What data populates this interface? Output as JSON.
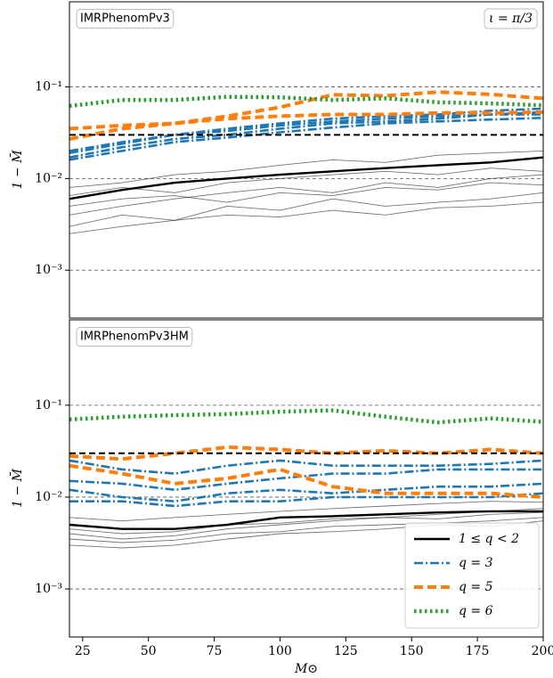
{
  "chart_data": [
    {
      "type": "line",
      "annotation": "IMRPhenomPv3",
      "annotation_right": "ι = π/3",
      "ylabel": "1 − M̄",
      "log_y": true,
      "ylim": [
        0.0003,
        0.85
      ],
      "yticks": [
        {
          "value": 0.001,
          "label": "10⁻³"
        },
        {
          "value": 0.01,
          "label": "10⁻²"
        },
        {
          "value": 0.1,
          "label": "10⁻¹"
        }
      ],
      "grid": true,
      "xlim": [
        20,
        200
      ],
      "hline": 0.03,
      "x": [
        20,
        40,
        60,
        80,
        100,
        120,
        140,
        160,
        180,
        200
      ],
      "series": [
        {
          "color": "#000000",
          "style": "thin",
          "lines": [
            [
              0.003,
              0.004,
              0.0035,
              0.005,
              0.0045,
              0.006,
              0.005,
              0.0055,
              0.006,
              0.007
            ],
            [
              0.004,
              0.005,
              0.006,
              0.007,
              0.008,
              0.007,
              0.009,
              0.008,
              0.01,
              0.011
            ],
            [
              0.008,
              0.009,
              0.011,
              0.012,
              0.014,
              0.016,
              0.015,
              0.018,
              0.019,
              0.02
            ],
            [
              0.0065,
              0.008,
              0.007,
              0.009,
              0.01,
              0.011,
              0.012,
              0.011,
              0.013,
              0.012
            ],
            [
              0.005,
              0.006,
              0.0065,
              0.0055,
              0.007,
              0.0065,
              0.008,
              0.0075,
              0.009,
              0.0085
            ],
            [
              0.0025,
              0.003,
              0.0035,
              0.004,
              0.0038,
              0.0045,
              0.004,
              0.0048,
              0.005,
              0.0055
            ]
          ]
        },
        {
          "color": "#000000",
          "style": "solid",
          "lines": [
            [
              0.006,
              0.0075,
              0.009,
              0.01,
              0.011,
              0.012,
              0.013,
              0.014,
              0.015,
              0.017
            ]
          ]
        },
        {
          "color": "#1f77b4",
          "style": "dashdot",
          "lines": [
            [
              0.02,
              0.025,
              0.03,
              0.035,
              0.04,
              0.045,
              0.048,
              0.05,
              0.055,
              0.058
            ],
            [
              0.017,
              0.022,
              0.027,
              0.03,
              0.035,
              0.04,
              0.042,
              0.045,
              0.05,
              0.05
            ],
            [
              0.019,
              0.024,
              0.03,
              0.033,
              0.038,
              0.042,
              0.045,
              0.048,
              0.05,
              0.053
            ],
            [
              0.016,
              0.02,
              0.025,
              0.028,
              0.032,
              0.036,
              0.04,
              0.042,
              0.044,
              0.046
            ]
          ]
        },
        {
          "color": "#ff7f0e",
          "style": "dashed",
          "lines": [
            [
              0.035,
              0.038,
              0.04,
              0.048,
              0.06,
              0.082,
              0.08,
              0.088,
              0.083,
              0.075
            ],
            [
              0.027,
              0.035,
              0.04,
              0.045,
              0.048,
              0.05,
              0.05,
              0.052,
              0.052,
              0.053
            ]
          ]
        },
        {
          "color": "#2ca02c",
          "style": "dotted",
          "lines": [
            [
              0.062,
              0.072,
              0.072,
              0.078,
              0.077,
              0.072,
              0.075,
              0.068,
              0.066,
              0.063
            ]
          ]
        }
      ]
    },
    {
      "type": "line",
      "annotation": "IMRPhenomPv3HM",
      "ylabel": "1 − M̄",
      "xlabel": "M⊙",
      "log_y": true,
      "ylim": [
        0.0003,
        0.85
      ],
      "yticks": [
        {
          "value": 0.001,
          "label": "10⁻³"
        },
        {
          "value": 0.01,
          "label": "10⁻²"
        },
        {
          "value": 0.1,
          "label": "10⁻¹"
        }
      ],
      "grid": true,
      "xlim": [
        20,
        200
      ],
      "xticks": [
        25,
        50,
        75,
        100,
        125,
        150,
        175,
        200
      ],
      "hline": 0.03,
      "legend": "lower right",
      "x": [
        20,
        40,
        60,
        80,
        100,
        120,
        140,
        160,
        180,
        200
      ],
      "series": [
        {
          "color": "#000000",
          "style": "thin",
          "lines": [
            [
              0.003,
              0.0028,
              0.003,
              0.0035,
              0.004,
              0.0042,
              0.0045,
              0.005,
              0.0048,
              0.0055
            ],
            [
              0.004,
              0.0035,
              0.0038,
              0.0045,
              0.005,
              0.0055,
              0.006,
              0.0058,
              0.0065,
              0.0068
            ],
            [
              0.006,
              0.0055,
              0.006,
              0.0065,
              0.007,
              0.0075,
              0.008,
              0.0085,
              0.009,
              0.0088
            ],
            [
              0.0045,
              0.004,
              0.0042,
              0.005,
              0.0052,
              0.0058,
              0.006,
              0.0065,
              0.007,
              0.0075
            ],
            [
              0.0035,
              0.0032,
              0.0034,
              0.004,
              0.0042,
              0.0048,
              0.005,
              0.0052,
              0.0055,
              0.006
            ]
          ]
        },
        {
          "name": "1 ≤ q < 2",
          "color": "#000000",
          "style": "solid",
          "lines": [
            [
              0.005,
              0.0045,
              0.0045,
              0.005,
              0.006,
              0.0062,
              0.0065,
              0.0068,
              0.007,
              0.007
            ]
          ]
        },
        {
          "name": "q = 3",
          "color": "#1f77b4",
          "style": "dashdot",
          "lines": [
            [
              0.025,
              0.02,
              0.018,
              0.022,
              0.025,
              0.022,
              0.022,
              0.022,
              0.023,
              0.025
            ],
            [
              0.015,
              0.014,
              0.012,
              0.014,
              0.016,
              0.018,
              0.018,
              0.02,
              0.02,
              0.02
            ],
            [
              0.012,
              0.01,
              0.009,
              0.011,
              0.012,
              0.011,
              0.012,
              0.013,
              0.013,
              0.014
            ],
            [
              0.009,
              0.009,
              0.008,
              0.009,
              0.009,
              0.01,
              0.01,
              0.01,
              0.01,
              0.011
            ]
          ]
        },
        {
          "name": "q = 5",
          "color": "#ff7f0e",
          "style": "dashed",
          "lines": [
            [
              0.028,
              0.026,
              0.03,
              0.035,
              0.033,
              0.03,
              0.032,
              0.03,
              0.033,
              0.03
            ],
            [
              0.022,
              0.018,
              0.014,
              0.016,
              0.02,
              0.013,
              0.011,
              0.011,
              0.011,
              0.01
            ]
          ]
        },
        {
          "name": "q = 6",
          "color": "#2ca02c",
          "style": "dotted",
          "lines": [
            [
              0.07,
              0.075,
              0.078,
              0.08,
              0.085,
              0.088,
              0.075,
              0.065,
              0.072,
              0.066
            ]
          ]
        }
      ]
    }
  ]
}
